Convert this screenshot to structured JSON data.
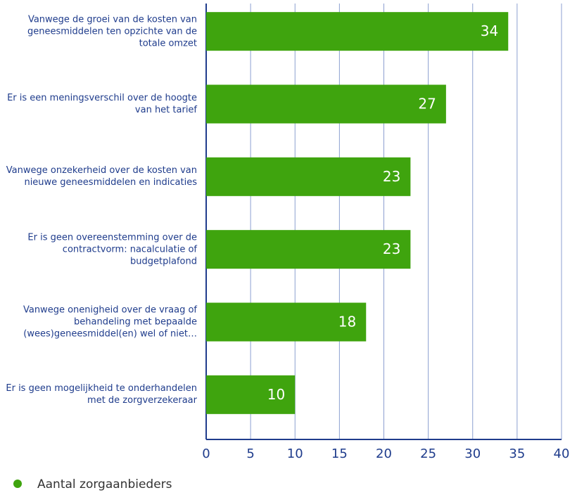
{
  "chart_data": {
    "type": "barh",
    "categories": [
      "Vanwege de groei van de kosten van geneesmiddelen ten opzichte van de totale omzet",
      "Er is een meningsverschil over de hoogte van het tarief",
      "Vanwege onzekerheid over de kosten van nieuwe geneesmiddelen en indicaties",
      "Er is geen overeenstemming over de contractvorm: nacalculatie of budgetplafond",
      "Vanwege onenigheid over de vraag of behandeling met bepaalde (wees)geneesmiddel(en) wel of niet…",
      "Er is geen mogelijkheid te onderhandelen met de zorgverzekeraar"
    ],
    "series": [
      {
        "name": "Aantal zorgaanbieders",
        "color": "#3fa40e",
        "values": [
          34,
          27,
          23,
          23,
          18,
          10
        ]
      }
    ],
    "xlim": [
      0,
      40
    ],
    "xticks": [
      0,
      5,
      10,
      15,
      20,
      25,
      30,
      35,
      40
    ],
    "grid": true
  }
}
